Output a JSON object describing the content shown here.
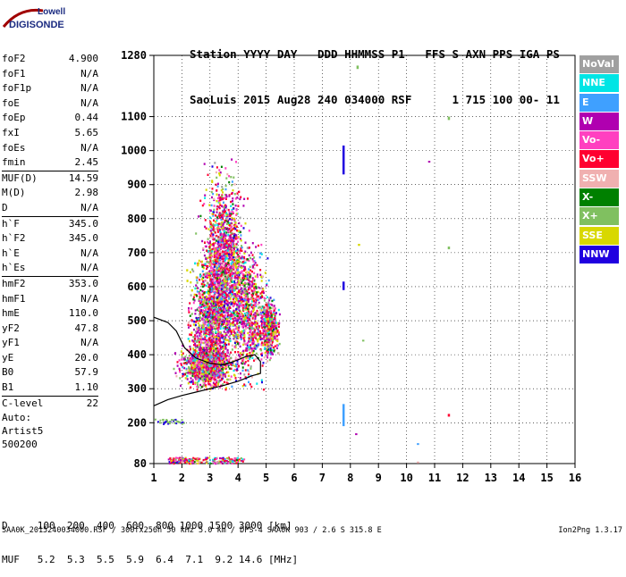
{
  "logo": {
    "line1": "Lowell",
    "line2": "DIGISONDE"
  },
  "header": {
    "line1": "Station YYYY DAY   DDD HHMMSS P1   FFS S AXN PPS IGA PS",
    "line2": "SaoLuis 2015 Aug28 240 034000 RSF      1 715 100 00- 11"
  },
  "params": [
    {
      "k": "foF2",
      "v": "4.900"
    },
    {
      "k": "foF1",
      "v": "N/A"
    },
    {
      "k": "foF1p",
      "v": "N/A"
    },
    {
      "k": "foE",
      "v": "N/A"
    },
    {
      "k": "foEp",
      "v": "0.44"
    },
    {
      "k": "fxI",
      "v": "5.65"
    },
    {
      "k": "foEs",
      "v": "N/A"
    },
    {
      "k": "fmin",
      "v": "2.45"
    },
    {
      "k": "MUF(D)",
      "v": "14.59"
    },
    {
      "k": "M(D)",
      "v": "2.98"
    },
    {
      "k": "D",
      "v": "N/A"
    },
    {
      "k": "h`F",
      "v": "345.0"
    },
    {
      "k": "h`F2",
      "v": "345.0"
    },
    {
      "k": "h`E",
      "v": "N/A"
    },
    {
      "k": "h`Es",
      "v": "N/A"
    },
    {
      "k": "hmF2",
      "v": "353.0"
    },
    {
      "k": "hmF1",
      "v": "N/A"
    },
    {
      "k": "hmE",
      "v": "110.0"
    },
    {
      "k": "yF2",
      "v": "47.8"
    },
    {
      "k": "yF1",
      "v": "N/A"
    },
    {
      "k": "yE",
      "v": "20.0"
    },
    {
      "k": "B0",
      "v": "57.9"
    },
    {
      "k": "B1",
      "v": "1.10"
    },
    {
      "k": "C-level",
      "v": "22"
    }
  ],
  "auto": {
    "line1": "Auto:",
    "line2": "Artist5",
    "line3": "500200"
  },
  "legend": [
    {
      "label": "NoVal",
      "color": "#a0a0a0"
    },
    {
      "label": "NNE",
      "color": "#00e5e5"
    },
    {
      "label": "E",
      "color": "#3fa0ff"
    },
    {
      "label": "W",
      "color": "#b000b0"
    },
    {
      "label": "Vo-",
      "color": "#ff40c0"
    },
    {
      "label": "Vo+",
      "color": "#ff0030"
    },
    {
      "label": "SSW",
      "color": "#f0b0b0"
    },
    {
      "label": "X-",
      "color": "#008000"
    },
    {
      "label": "X+",
      "color": "#80c060"
    },
    {
      "label": "SSE",
      "color": "#d8d800"
    },
    {
      "label": "NNW",
      "color": "#2000e0"
    }
  ],
  "bottom": {
    "line1": "D     100  200  400  600  800 1000 1500 3000 [km]",
    "line2": "MUF   5.2  5.3  5.5  5.9  6.4  7.1  9.2 14.6 [MHz]"
  },
  "footer": {
    "left": "SAA0K_2015240034000.RSF / 300fx256h 50 kHz 5.0 km / DPS-4 SAA0K 903 / 2.6 S 315.8 E",
    "right": "Ion2Png 1.3.17"
  },
  "chart_data": {
    "type": "scatter",
    "xlim": [
      1,
      16
    ],
    "ylim": [
      80,
      1280
    ],
    "xticks": [
      1,
      2,
      3,
      4,
      5,
      6,
      7,
      8,
      9,
      10,
      11,
      12,
      13,
      14,
      15,
      16
    ],
    "yticks": [
      80,
      200,
      300,
      400,
      500,
      600,
      700,
      800,
      900,
      1000,
      1100,
      1280
    ],
    "grid": true,
    "legend_position": "right",
    "profile": [
      [
        1.0,
        250
      ],
      [
        1.5,
        268
      ],
      [
        2.0,
        280
      ],
      [
        2.5,
        290
      ],
      [
        3.0,
        300
      ],
      [
        3.5,
        310
      ],
      [
        4.0,
        322
      ],
      [
        4.5,
        338
      ],
      [
        4.8,
        345
      ],
      [
        4.8,
        380
      ],
      [
        4.6,
        400
      ],
      [
        4.3,
        395
      ],
      [
        4.0,
        385
      ],
      [
        3.5,
        370
      ],
      [
        3.0,
        375
      ],
      [
        2.5,
        390
      ],
      [
        2.1,
        420
      ],
      [
        1.8,
        470
      ],
      [
        1.5,
        495
      ],
      [
        1.0,
        510
      ]
    ],
    "regions": [
      {
        "cx": 3.0,
        "cy": 480,
        "sx": 0.6,
        "sy": 180,
        "n": 1500
      },
      {
        "cx": 3.4,
        "cy": 700,
        "sx": 0.45,
        "sy": 180,
        "n": 900
      },
      {
        "cx": 3.8,
        "cy": 620,
        "sx": 0.5,
        "sy": 220,
        "n": 700
      },
      {
        "cx": 4.4,
        "cy": 520,
        "sx": 0.5,
        "sy": 150,
        "n": 600
      },
      {
        "cx": 5.1,
        "cy": 480,
        "sx": 0.25,
        "sy": 60,
        "n": 500
      },
      {
        "cx": 2.8,
        "cy": 370,
        "sx": 0.7,
        "sy": 40,
        "n": 700
      }
    ],
    "isolated": [
      {
        "x": 7.75,
        "y1": 930,
        "y2": 1015,
        "c": "#2000e0"
      },
      {
        "x": 7.75,
        "y1": 590,
        "y2": 615,
        "c": "#2000e0"
      },
      {
        "x": 7.75,
        "y1": 190,
        "y2": 255,
        "c": "#3fa0ff"
      },
      {
        "x": 8.25,
        "y1": 1240,
        "y2": 1250,
        "c": "#80c060"
      },
      {
        "x": 11.5,
        "y1": 1090,
        "y2": 1100,
        "c": "#80c060"
      },
      {
        "x": 11.5,
        "y1": 710,
        "y2": 718,
        "c": "#80c060"
      },
      {
        "x": 11.5,
        "y1": 218,
        "y2": 226,
        "c": "#ff0030"
      },
      {
        "x": 10.8,
        "y1": 965,
        "y2": 970,
        "c": "#b000b0"
      },
      {
        "x": 8.3,
        "y1": 720,
        "y2": 726,
        "c": "#d8d800"
      },
      {
        "x": 8.45,
        "y1": 440,
        "y2": 444,
        "c": "#80c060"
      },
      {
        "x": 8.2,
        "y1": 165,
        "y2": 169,
        "c": "#b000b0"
      },
      {
        "x": 10.4,
        "y1": 137,
        "y2": 140,
        "c": "#3fa0ff"
      },
      {
        "x": 10.4,
        "y1": 83,
        "y2": 86,
        "c": "#f0b0b0"
      }
    ]
  }
}
